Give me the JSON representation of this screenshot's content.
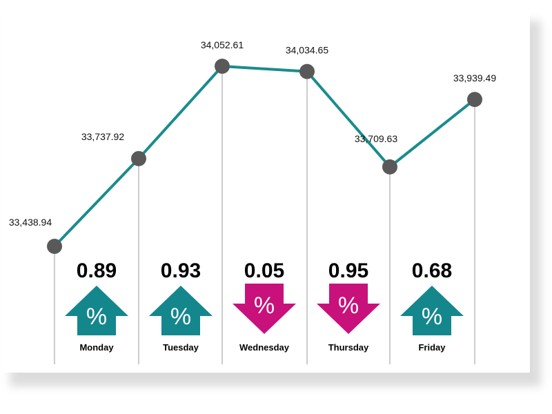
{
  "chart_data": {
    "type": "line",
    "title": "",
    "xlabel": "",
    "ylabel": "",
    "categories": [
      "Monday",
      "Tuesday",
      "Wednesday",
      "Thursday",
      "Friday"
    ],
    "points": [
      {
        "category": "",
        "value": 33438.94,
        "label": "33,438.94"
      },
      {
        "category": "Monday",
        "value": 33737.92,
        "label": "33,737.92"
      },
      {
        "category": "Tuesday",
        "value": 34052.61,
        "label": "34,052.61"
      },
      {
        "category": "Wednesday",
        "value": 34034.65,
        "label": "34,034.65"
      },
      {
        "category": "Thursday",
        "value": 33709.63,
        "label": "33,709.63"
      },
      {
        "category": "Friday",
        "value": 33939.49,
        "label": "33,939.49"
      }
    ],
    "daily_changes": [
      {
        "day": "Monday",
        "change": "0.89",
        "direction": "up"
      },
      {
        "day": "Tuesday",
        "change": "0.93",
        "direction": "up"
      },
      {
        "day": "Wednesday",
        "change": "0.05",
        "direction": "down"
      },
      {
        "day": "Thursday",
        "change": "0.95",
        "direction": "down"
      },
      {
        "day": "Friday",
        "change": "0.68",
        "direction": "up"
      }
    ],
    "percent_symbol": "%",
    "ylim": [
      33438.94,
      34052.61
    ],
    "grid": false,
    "legend": "none"
  },
  "colors": {
    "line": "#1a8c8c",
    "marker": "#595959",
    "up": "#14878d",
    "down": "#c8117a",
    "vline": "#999999"
  }
}
